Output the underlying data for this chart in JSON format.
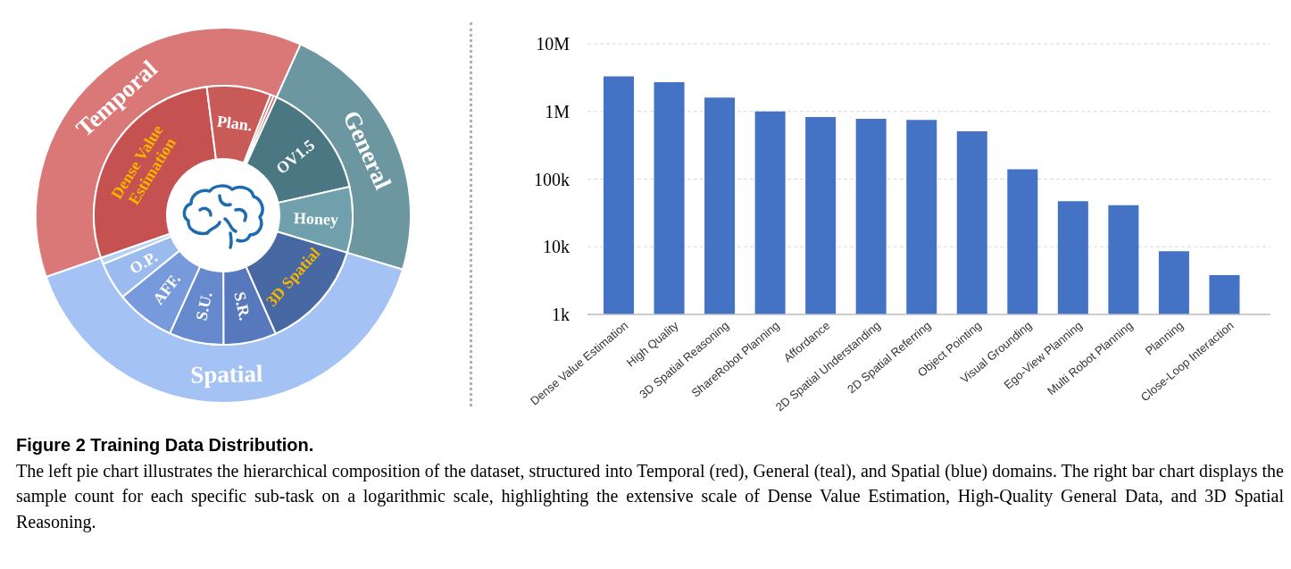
{
  "chart_data": [
    {
      "type": "donut",
      "categories": [
        "Temporal",
        "General",
        "Spatial"
      ],
      "values": [
        37.1,
        22.9,
        40.0
      ],
      "colors": [
        "#d97876",
        "#6d97a0",
        "#a4c2f4"
      ]
    },
    {
      "type": "donut",
      "categories": [
        "Dense Value Estimation",
        "Plan.",
        null,
        null,
        "OV1.5",
        "Honey",
        "3D Spatial",
        "S.R.",
        "S.U.",
        "AFF.",
        "O.P.",
        null
      ],
      "values": [
        28.3,
        8.0,
        0.4,
        0.4,
        14.7,
        8.2,
        13.7,
        6.6,
        6.8,
        7.4,
        4.7,
        0.8
      ],
      "colors": [
        "#c55250",
        "#c85a58",
        "#c85a58",
        "#c85a58",
        "#4b7782",
        "#6fa0ab",
        "#4868a3",
        "#5778bd",
        "#6688cc",
        "#769adb",
        "#9bbbee",
        "#b8d0f6"
      ]
    },
    {
      "type": "bar",
      "categories": [
        "Dense Value Estimation",
        "High Quality",
        "3D Spatial Reasoning",
        "ShareRobot Planning",
        "Affordance",
        "2D Spatial Understanding",
        "2D Spatial Referring",
        "Object Pointing",
        "Visual Grounding",
        "Ego-View Planning",
        "Multi Robot Planning",
        "Planning",
        "Close-Loop Interaction"
      ],
      "values": [
        3300000,
        2700000,
        1600000,
        1000000,
        830000,
        780000,
        750000,
        510000,
        140000,
        47000,
        41000,
        8600,
        3800
      ],
      "color": "#4472c4",
      "log": true,
      "ylim": [
        1000,
        10000000
      ],
      "yticks": [
        {
          "value": 1000,
          "label": "1k"
        },
        {
          "value": 10000,
          "label": "10k"
        },
        {
          "value": 100000,
          "label": "100k"
        },
        {
          "value": 1000000,
          "label": "1M"
        },
        {
          "value": 10000000,
          "label": "10M"
        }
      ],
      "grid": "y",
      "annotations": [
        "Figure 2 Training Data Distribution.",
        "The left pie chart illustrates the hierarchical composition of the dataset, structured into Temporal (red), General (teal), and Spatial (blue) domains. The right bar chart displays the sample count for each specific sub-task on a logarithmic scale, highlighting the extensive scale of Dense Value Estimation, High-Quality General Data, and 3D Spatial Reasoning."
      ]
    }
  ]
}
